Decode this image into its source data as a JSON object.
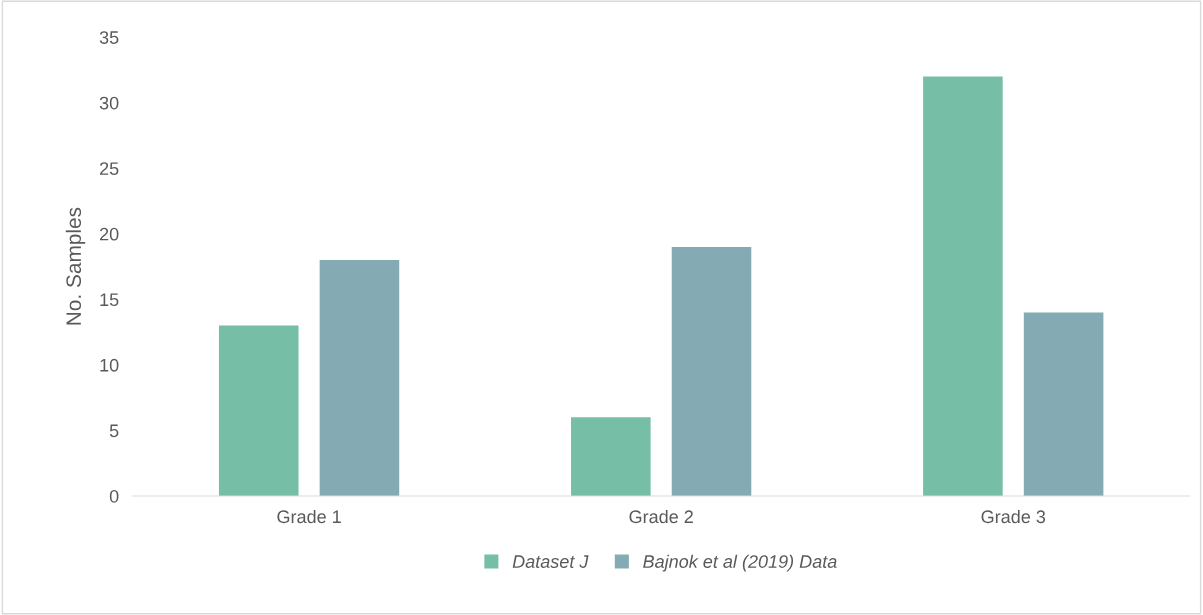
{
  "chart_data": {
    "type": "bar",
    "ylabel": "No. Samples",
    "categories": [
      "Grade 1",
      "Grade 2",
      "Grade 3"
    ],
    "series": [
      {
        "name": "Dataset J",
        "color": "#76bea6",
        "values": [
          13,
          6,
          32
        ]
      },
      {
        "name": "Bajnok et al (2019) Data",
        "color": "#84abb3",
        "values": [
          18,
          19,
          14
        ]
      }
    ],
    "ylim": [
      0,
      35
    ],
    "yticks": [
      0,
      5,
      10,
      15,
      20,
      25,
      30,
      35
    ],
    "grid": false,
    "legend": "bottom"
  }
}
